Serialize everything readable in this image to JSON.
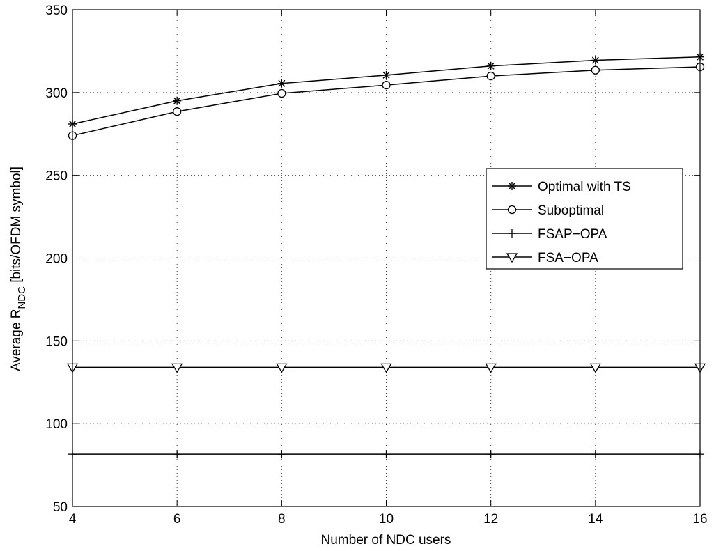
{
  "chart_data": {
    "type": "line",
    "title": "",
    "xlabel": "Number of NDC users",
    "ylabel": {
      "prefix": "Average R",
      "subscript": "NDC",
      "suffix": " [bits/OFDM symbol]"
    },
    "x": [
      4,
      6,
      8,
      10,
      12,
      14,
      16
    ],
    "xlim": [
      4,
      16
    ],
    "ylim": [
      50,
      350
    ],
    "xticks": [
      4,
      6,
      8,
      10,
      12,
      14,
      16
    ],
    "yticks": [
      50,
      100,
      150,
      200,
      250,
      300,
      350
    ],
    "grid": true,
    "legend_position": "center-right",
    "series": [
      {
        "name": "Optimal with TS",
        "marker": "asterisk",
        "color": "#000000",
        "values": [
          281,
          295,
          305.5,
          310.5,
          316,
          319.5,
          321.5
        ]
      },
      {
        "name": "Suboptimal",
        "marker": "circle",
        "color": "#000000",
        "values": [
          274,
          288.5,
          299.5,
          304.5,
          310,
          313.5,
          315.5
        ]
      },
      {
        "name": "FSAP−OPA",
        "marker": "plus",
        "color": "#000000",
        "values": [
          81.5,
          81.5,
          81.5,
          81.5,
          81.5,
          81.5,
          81.5
        ]
      },
      {
        "name": "FSA−OPA",
        "marker": "triangle-down",
        "color": "#000000",
        "values": [
          134,
          134,
          134,
          134,
          134,
          134,
          134
        ]
      }
    ]
  }
}
